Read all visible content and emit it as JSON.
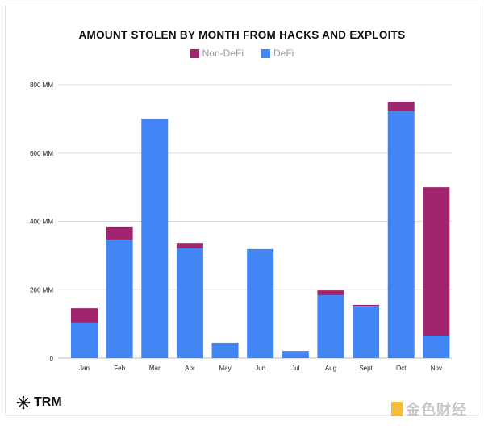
{
  "chart_data": {
    "type": "bar",
    "stacked": true,
    "title": "AMOUNT STOLEN BY MONTH FROM HACKS AND EXPLOITS",
    "xlabel": "",
    "ylabel": "",
    "categories": [
      "Jan",
      "Feb",
      "Mar",
      "Apr",
      "May",
      "Jun",
      "Jul",
      "Aug",
      "Sept",
      "Oct",
      "Nov"
    ],
    "series": [
      {
        "name": "DeFi",
        "color": "#4285f4",
        "values": [
          104,
          347,
          701,
          321,
          45,
          319,
          21,
          184,
          153,
          722,
          66
        ]
      },
      {
        "name": "Non-DeFi",
        "color": "#a0246e",
        "values": [
          42,
          38,
          0,
          16,
          0,
          0,
          0,
          14,
          3,
          28,
          434
        ]
      }
    ],
    "legend": [
      {
        "name": "Non-DeFi",
        "color": "#a0246e"
      },
      {
        "name": "DeFi",
        "color": "#4285f4"
      }
    ],
    "legend_position": "top-center",
    "ylim": [
      0,
      800
    ],
    "yticks": [
      0,
      200,
      400,
      600,
      800
    ],
    "ytick_labels": [
      "0",
      "200 MM",
      "400 MM",
      "600 MM",
      "800 MM"
    ],
    "grid": true
  },
  "branding": {
    "logo_text": "TRM",
    "watermark_text": "金色财经"
  }
}
